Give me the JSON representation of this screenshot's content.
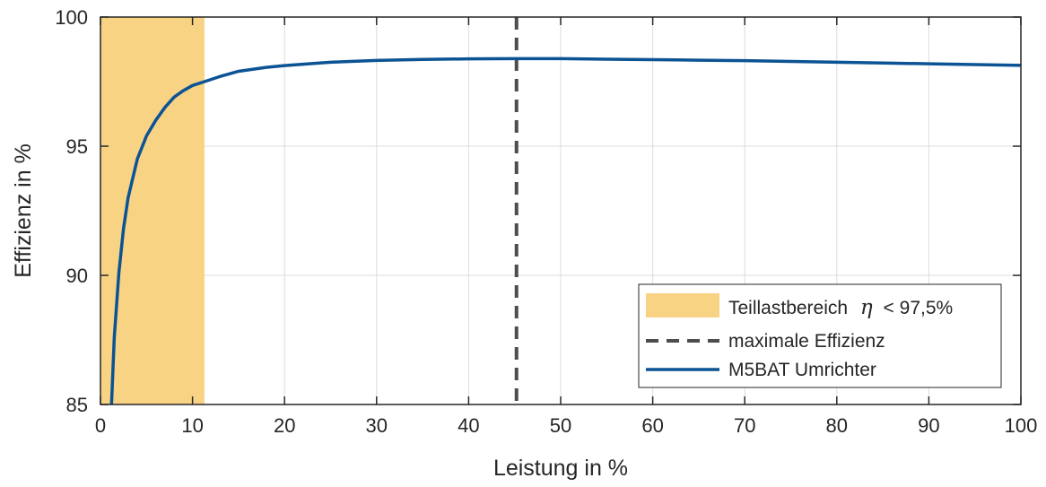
{
  "chart_data": {
    "type": "line",
    "title": "",
    "xlabel": "Leistung in %",
    "ylabel": "Effizienz in %",
    "xlim": [
      0,
      100
    ],
    "ylim": [
      85,
      100
    ],
    "xticks": [
      0,
      10,
      20,
      30,
      40,
      50,
      60,
      70,
      80,
      90,
      100
    ],
    "yticks": [
      85,
      90,
      95,
      100
    ],
    "grid": true,
    "legend_position": "bottom-right",
    "shaded_region": {
      "name": "Teillastbereich",
      "name_symbol": "η",
      "name_suffix": "< 97,5%",
      "x_range": [
        0,
        11.3
      ],
      "color": "#f8d384"
    },
    "reference_line": {
      "name": "maximale Effizienz",
      "x": 45.2,
      "color": "#4d4d4d"
    },
    "series": [
      {
        "name": "M5BAT Umrichter",
        "color": "#0b5394",
        "x": [
          1.2,
          1.5,
          2,
          2.5,
          3,
          4,
          5,
          6,
          7,
          8,
          9,
          10,
          11.3,
          13,
          15,
          18,
          20,
          25,
          30,
          35,
          40,
          45,
          50,
          55,
          60,
          65,
          70,
          75,
          80,
          85,
          90,
          95,
          100
        ],
        "y": [
          85.0,
          87.6,
          90.1,
          91.8,
          93.0,
          94.5,
          95.4,
          96.0,
          96.5,
          96.9,
          97.15,
          97.35,
          97.5,
          97.7,
          97.9,
          98.05,
          98.12,
          98.25,
          98.32,
          98.36,
          98.38,
          98.39,
          98.39,
          98.37,
          98.35,
          98.33,
          98.31,
          98.28,
          98.25,
          98.22,
          98.19,
          98.16,
          98.13
        ]
      }
    ]
  }
}
